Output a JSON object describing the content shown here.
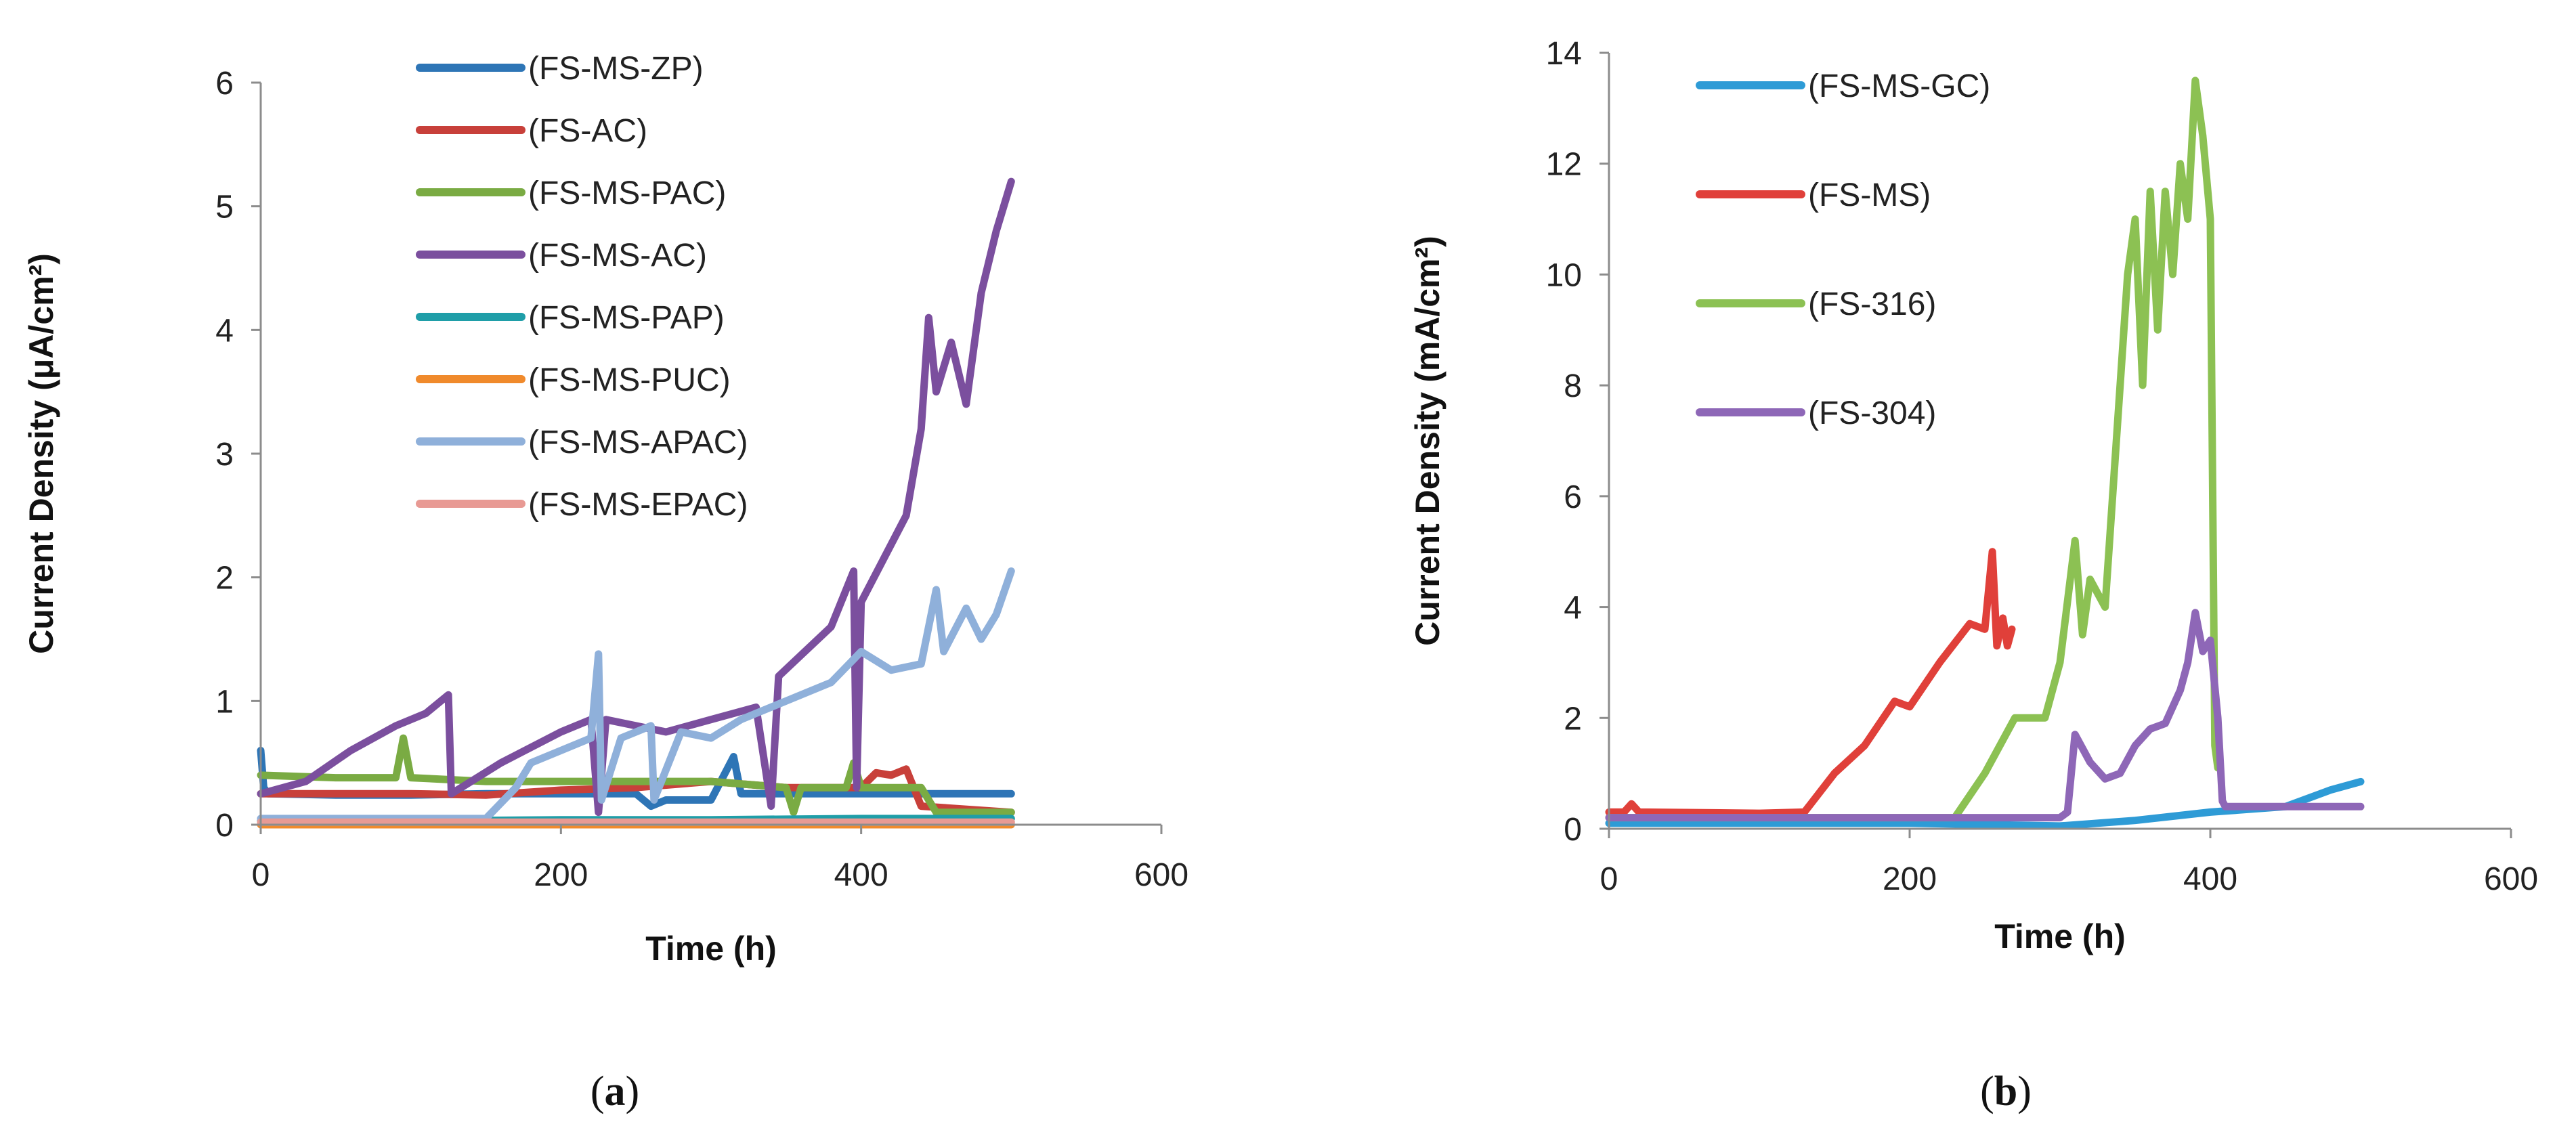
{
  "chart_data": [
    {
      "type": "line",
      "panel_label": "a",
      "xlabel": "Time (h)",
      "ylabel": "Current Density (μA/cm²)",
      "xlim": [
        0,
        600
      ],
      "ylim": [
        0,
        6
      ],
      "xticks": [
        "0",
        "200",
        "400",
        "600"
      ],
      "yticks": [
        "0",
        "1",
        "2",
        "3",
        "4",
        "5",
        "6"
      ],
      "legend_position": "top-center",
      "series": [
        {
          "name": "(FS-MS-ZP)",
          "color": "#2E75B6",
          "x": [
            0,
            2,
            5,
            50,
            100,
            150,
            200,
            250,
            260,
            270,
            300,
            315,
            320,
            350,
            400,
            450,
            500
          ],
          "y": [
            0.6,
            0.3,
            0.25,
            0.24,
            0.24,
            0.25,
            0.25,
            0.25,
            0.15,
            0.2,
            0.2,
            0.55,
            0.25,
            0.25,
            0.25,
            0.25,
            0.25
          ]
        },
        {
          "name": "(FS-AC)",
          "color": "#C8403A",
          "x": [
            0,
            50,
            100,
            150,
            200,
            250,
            300,
            350,
            400,
            410,
            420,
            430,
            440,
            500
          ],
          "y": [
            0.25,
            0.25,
            0.25,
            0.24,
            0.28,
            0.3,
            0.35,
            0.3,
            0.3,
            0.42,
            0.4,
            0.45,
            0.15,
            0.1
          ]
        },
        {
          "name": "(FS-MS-PAC)",
          "color": "#7AAB43",
          "x": [
            0,
            50,
            90,
            95,
            100,
            150,
            200,
            250,
            300,
            350,
            355,
            360,
            390,
            395,
            400,
            440,
            450,
            500
          ],
          "y": [
            0.4,
            0.38,
            0.38,
            0.7,
            0.38,
            0.35,
            0.35,
            0.35,
            0.35,
            0.3,
            0.1,
            0.3,
            0.3,
            0.5,
            0.3,
            0.3,
            0.1,
            0.1
          ]
        },
        {
          "name": "(FS-MS-AC)",
          "color": "#7B4F9E",
          "x": [
            0,
            30,
            60,
            90,
            110,
            125,
            127,
            160,
            200,
            220,
            225,
            230,
            270,
            300,
            330,
            340,
            345,
            380,
            395,
            397,
            400,
            430,
            440,
            445,
            450,
            460,
            470,
            480,
            490,
            500
          ],
          "y": [
            0.25,
            0.35,
            0.6,
            0.8,
            0.9,
            1.05,
            0.25,
            0.5,
            0.75,
            0.85,
            0.1,
            0.85,
            0.75,
            0.85,
            0.95,
            0.15,
            1.2,
            1.6,
            2.05,
            0.3,
            1.8,
            2.5,
            3.2,
            4.1,
            3.5,
            3.9,
            3.4,
            4.3,
            4.8,
            5.2
          ]
        },
        {
          "name": "(FS-MS-PAP)",
          "color": "#1F9EA8",
          "x": [
            0,
            100,
            200,
            300,
            400,
            500
          ],
          "y": [
            0.03,
            0.03,
            0.04,
            0.04,
            0.05,
            0.05
          ]
        },
        {
          "name": "(FS-MS-PUC)",
          "color": "#F08A2C",
          "x": [
            0,
            100,
            200,
            300,
            400,
            500
          ],
          "y": [
            0.0,
            0.0,
            0.0,
            0.0,
            0.0,
            0.0
          ]
        },
        {
          "name": "(FS-MS-APAC)",
          "color": "#8FB0DA",
          "x": [
            0,
            100,
            150,
            170,
            180,
            200,
            220,
            225,
            227,
            240,
            260,
            262,
            280,
            300,
            320,
            350,
            380,
            400,
            420,
            440,
            450,
            455,
            470,
            480,
            490,
            500
          ],
          "y": [
            0.05,
            0.05,
            0.05,
            0.3,
            0.5,
            0.6,
            0.7,
            1.38,
            0.2,
            0.7,
            0.8,
            0.2,
            0.75,
            0.7,
            0.85,
            1.0,
            1.15,
            1.4,
            1.25,
            1.3,
            1.9,
            1.4,
            1.75,
            1.5,
            1.7,
            2.05
          ]
        },
        {
          "name": "(FS-MS-EPAC)",
          "color": "#E89A94",
          "x": [
            0,
            100,
            200,
            300,
            400,
            500
          ],
          "y": [
            0.02,
            0.02,
            0.02,
            0.02,
            0.02,
            0.02
          ]
        }
      ]
    },
    {
      "type": "line",
      "panel_label": "b",
      "xlabel": "Time (h)",
      "ylabel": "Current Density (mA/cm²)",
      "xlim": [
        0,
        600
      ],
      "ylim": [
        0,
        14
      ],
      "xticks": [
        "0",
        "200",
        "400",
        "600"
      ],
      "yticks": [
        "0",
        "2",
        "4",
        "6",
        "8",
        "10",
        "12",
        "14"
      ],
      "legend_position": "top-left",
      "series": [
        {
          "name": "(FS-MS-GC)",
          "color": "#2E9BD6",
          "x": [
            0,
            100,
            200,
            300,
            350,
            400,
            450,
            480,
            500
          ],
          "y": [
            0.1,
            0.1,
            0.1,
            0.05,
            0.15,
            0.3,
            0.4,
            0.7,
            0.85
          ]
        },
        {
          "name": "(FS-MS)",
          "color": "#E0403A",
          "x": [
            0,
            10,
            15,
            20,
            100,
            130,
            150,
            170,
            190,
            200,
            220,
            240,
            250,
            255,
            258,
            262,
            265,
            268
          ],
          "y": [
            0.3,
            0.3,
            0.45,
            0.3,
            0.28,
            0.3,
            1.0,
            1.5,
            2.3,
            2.2,
            3.0,
            3.7,
            3.6,
            5.0,
            3.3,
            3.8,
            3.3,
            3.6
          ]
        },
        {
          "name": "(FS-316)",
          "color": "#8CC153",
          "x": [
            0,
            100,
            200,
            230,
            250,
            270,
            290,
            300,
            310,
            315,
            320,
            330,
            335,
            345,
            350,
            355,
            360,
            365,
            370,
            375,
            380,
            385,
            390,
            395,
            400,
            403,
            405
          ],
          "y": [
            0.2,
            0.2,
            0.2,
            0.2,
            1.0,
            2.0,
            2.0,
            3.0,
            5.2,
            3.5,
            4.5,
            4.0,
            6.0,
            10.0,
            11.0,
            8.0,
            11.5,
            9.0,
            11.5,
            10.0,
            12.0,
            11.0,
            13.5,
            12.5,
            11.0,
            1.5,
            1.1
          ]
        },
        {
          "name": "(FS-304)",
          "color": "#8E67B7",
          "x": [
            0,
            100,
            200,
            300,
            305,
            310,
            320,
            330,
            340,
            350,
            360,
            370,
            380,
            385,
            390,
            395,
            400,
            405,
            408,
            410,
            450,
            500
          ],
          "y": [
            0.2,
            0.2,
            0.2,
            0.2,
            0.3,
            1.7,
            1.2,
            0.9,
            1.0,
            1.5,
            1.8,
            1.9,
            2.5,
            3.0,
            3.9,
            3.2,
            3.4,
            2.0,
            0.5,
            0.4,
            0.4,
            0.4
          ]
        }
      ]
    }
  ]
}
